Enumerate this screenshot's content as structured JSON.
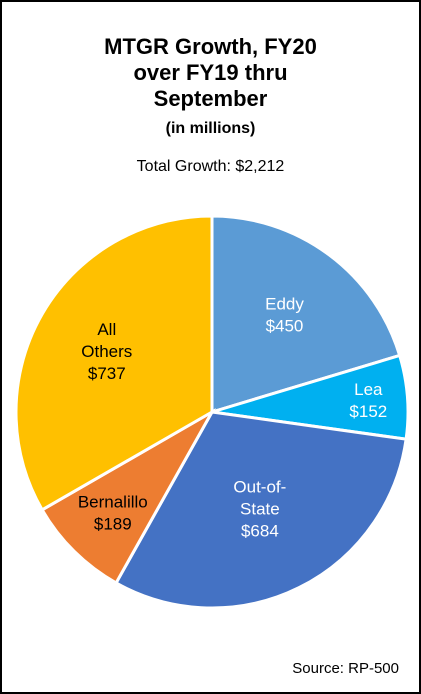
{
  "chart_data": {
    "type": "pie",
    "title_lines": [
      "MTGR Growth, FY20",
      "over FY19 thru",
      "September"
    ],
    "subtitle": "(in millions)",
    "total_text": "Total Growth: $2,212",
    "source": "Source: RP-500",
    "slices": [
      {
        "label_lines": [
          "Eddy",
          "$450"
        ],
        "value": 450,
        "color": "#5B9BD5",
        "text_color": "#ffffff"
      },
      {
        "label_lines": [
          "Lea",
          "$152"
        ],
        "value": 152,
        "color": "#00B0F0",
        "text_color": "#ffffff"
      },
      {
        "label_lines": [
          "Out-of-",
          "State",
          "$684"
        ],
        "value": 684,
        "color": "#4472C4",
        "text_color": "#ffffff"
      },
      {
        "label_lines": [
          "Bernalillo",
          "$189"
        ],
        "value": 189,
        "color": "#ED7D31",
        "text_color": "#000000"
      },
      {
        "label_lines": [
          "All",
          "Others",
          "$737"
        ],
        "value": 737,
        "color": "#FFC000",
        "text_color": "#000000"
      }
    ]
  }
}
